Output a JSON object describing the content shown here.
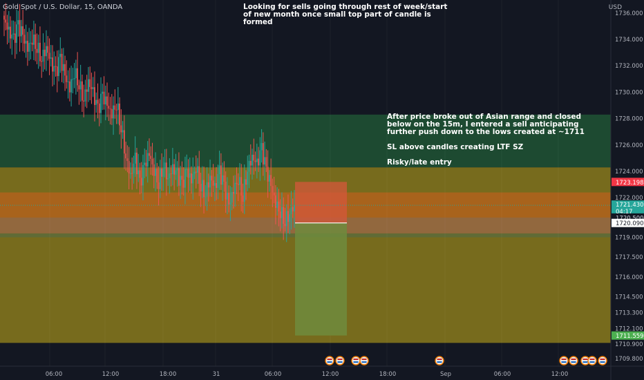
{
  "header": {
    "symbol_line": "Gold Spot / U.S. Dollar, 15, OANDA"
  },
  "annotations": {
    "top_note": "Looking for sells going through rest of week/start\nof new month once small top part of candle is\nformed",
    "right_note": "After price broke out of Asian range and closed\nbelow on the 15m, I entered a sell anticipating\nfurther push down to the lows created at ~1711\n\nSL above candles creating LTF SZ\n\nRisky/late entry"
  },
  "colors": {
    "background": "#131722",
    "bull": "#26a69a",
    "bear": "#ef5350",
    "supply_zone": "#1e4d33",
    "yellow_zone": "#8a7a1c",
    "orange_zone": "#b0611c",
    "stop_zone": "#d4573b",
    "target_zone": "#6e8b3d",
    "price_tag_red": "#f23645",
    "price_tag_green": "#26a69a",
    "price_tag_target": "#4caf50"
  },
  "chart_data": {
    "type": "candlestick",
    "symbol": "Gold Spot / U.S. Dollar",
    "timeframe": "15",
    "source": "OANDA",
    "y_axis_label": "USD",
    "ylim": [
      1709.6,
      1736.3
    ],
    "y_ticks": [
      "1736.000",
      "1734.000",
      "1732.000",
      "1730.000",
      "1728.000",
      "1726.000",
      "1724.000",
      "1722.000",
      "1720.500",
      "1719.000",
      "1717.500",
      "1716.000",
      "1714.500",
      "1713.300",
      "1712.100",
      "1710.900",
      "1709.800"
    ],
    "x_ticks": [
      "06:00",
      "12:00",
      "18:00",
      "31",
      "06:00",
      "12:00",
      "18:00",
      "Sep",
      "06:00",
      "12:00"
    ],
    "price_labels": [
      {
        "value": "1723.198",
        "kind": "alert"
      },
      {
        "value": "1721.430",
        "kind": "current",
        "countdown": "04:17"
      },
      {
        "value": "1720.500",
        "kind": "level"
      },
      {
        "value": "1720.090",
        "kind": "entry"
      },
      {
        "value": "1711.559",
        "kind": "target"
      }
    ],
    "zones": [
      {
        "name": "supply",
        "from": 1724.3,
        "to": 1728.3
      },
      {
        "name": "range",
        "from": 1711.0,
        "to": 1724.3
      },
      {
        "name": "breakout-level",
        "from": 1719.3,
        "to": 1722.4
      },
      {
        "name": "range-low",
        "from": 1719.0,
        "to": 1719.3
      }
    ],
    "position": {
      "side": "short",
      "entry": 1720.09,
      "stop": 1723.2,
      "target": 1711.56
    },
    "candles_close_path": [
      1735.5,
      1734.6,
      1733.9,
      1735.0,
      1734.2,
      1733.3,
      1734.1,
      1733.5,
      1732.6,
      1733.4,
      1732.2,
      1731.4,
      1732.5,
      1731.2,
      1730.3,
      1731.6,
      1730.7,
      1729.5,
      1730.8,
      1729.9,
      1728.6,
      1729.7,
      1729.0,
      1728.4,
      1729.2,
      1727.4,
      1725.1,
      1723.6,
      1724.9,
      1723.0,
      1724.4,
      1725.3,
      1724.1,
      1723.2,
      1724.6,
      1723.5,
      1724.2,
      1723.7,
      1722.9,
      1724.0,
      1723.3,
      1724.4,
      1723.0,
      1722.4,
      1723.6,
      1722.7,
      1723.9,
      1722.8,
      1721.4,
      1722.6,
      1723.5,
      1722.2,
      1724.2,
      1725.1,
      1724.5,
      1725.6,
      1724.0,
      1722.9,
      1721.6,
      1721.0,
      1720.3,
      1720.9,
      1721.43
    ]
  }
}
